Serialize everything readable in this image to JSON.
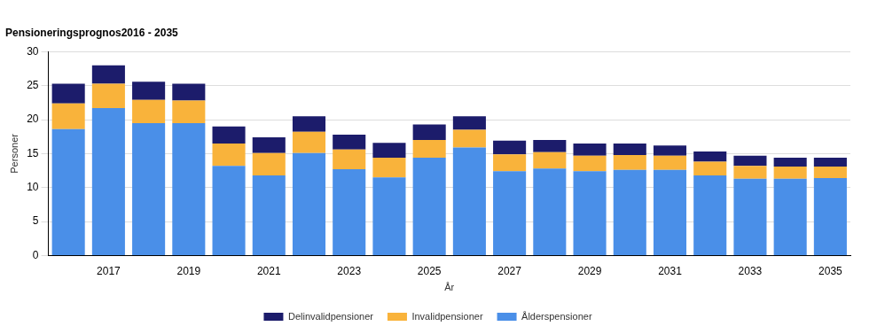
{
  "chart_data": {
    "type": "bar",
    "title": "Pensioneringsprognos2016 - 2035",
    "x_label": "År",
    "y_label": "Personer",
    "categories": [
      null,
      "2017",
      null,
      "2019",
      null,
      "2021",
      null,
      "2023",
      null,
      "2025",
      null,
      "2027",
      null,
      "2029",
      null,
      "2031",
      null,
      "2033",
      null,
      "2035"
    ],
    "series": [
      {
        "name": "Ålderspensioner",
        "color": "#4a8fe8",
        "values": [
          18.6,
          21.7,
          19.5,
          19.5,
          13.2,
          11.8,
          15.1,
          12.7,
          11.5,
          14.4,
          15.9,
          12.4,
          12.8,
          12.4,
          12.6,
          12.6,
          11.8,
          11.3,
          11.3,
          11.4
        ]
      },
      {
        "name": "Invalidpensioner",
        "color": "#f9b33b",
        "values": [
          3.8,
          3.6,
          3.4,
          3.3,
          3.3,
          3.3,
          3.1,
          2.9,
          2.9,
          2.6,
          2.6,
          2.5,
          2.4,
          2.3,
          2.2,
          2.1,
          2.0,
          1.9,
          1.8,
          1.7
        ]
      },
      {
        "name": "Delinvalidpensioner",
        "color": "#1c1c6b",
        "values": [
          2.9,
          2.7,
          2.7,
          2.5,
          2.5,
          2.3,
          2.3,
          2.2,
          2.2,
          2.3,
          2.0,
          2.0,
          1.8,
          1.8,
          1.7,
          1.5,
          1.5,
          1.5,
          1.3,
          1.3
        ]
      }
    ],
    "ylim": [
      0,
      30
    ],
    "yticks": [
      0,
      5,
      10,
      15,
      20,
      25,
      30
    ],
    "stacked": true,
    "grid": true,
    "legend": "bottom"
  }
}
